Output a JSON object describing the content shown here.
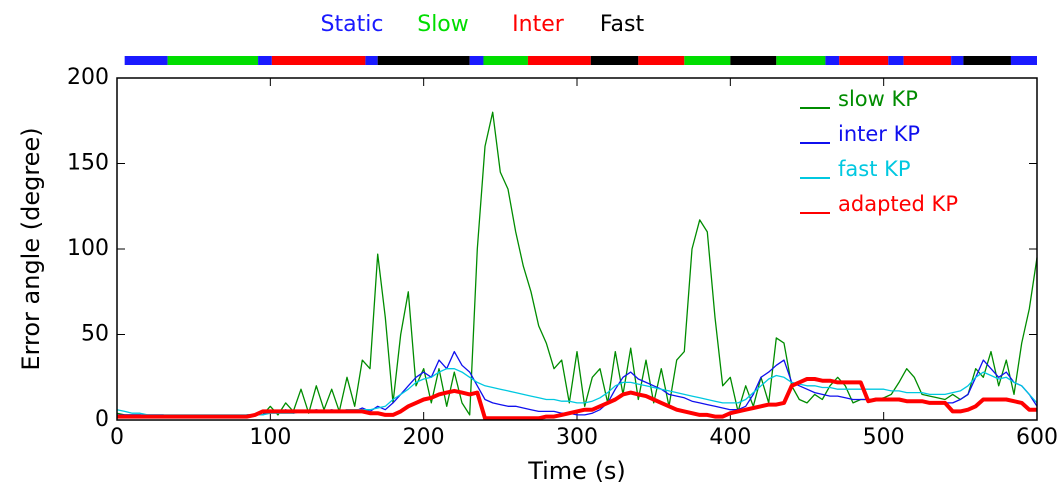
{
  "chart_data": {
    "type": "line",
    "xlabel": "Time (s)",
    "ylabel": "Error angle (degree)",
    "xlim": [
      0,
      600
    ],
    "xticks": [
      0,
      100,
      200,
      300,
      400,
      500,
      600
    ],
    "ylim": [
      0,
      200
    ],
    "yticks": [
      0,
      50,
      100,
      150,
      200
    ],
    "grid": false,
    "legend": "upper right",
    "phases": [
      {
        "name": "Static",
        "color": "#1a1aff"
      },
      {
        "name": "Slow",
        "color": "#00dd00"
      },
      {
        "name": "Inter",
        "color": "#ff0000"
      },
      {
        "name": "Fast",
        "color": "#000000"
      }
    ],
    "phase_edges": [
      5,
      33,
      92,
      101,
      162,
      170,
      230,
      239,
      268,
      309,
      340,
      370,
      400,
      430,
      462,
      471,
      503,
      513,
      544,
      552,
      583,
      600
    ],
    "phase_colors": [
      "#1a1aff",
      "#00dd00",
      "#1a1aff",
      "#ff0000",
      "#1a1aff",
      "#000000",
      "#1a1aff",
      "#00dd00",
      "#ff0000",
      "#000000",
      "#ff0000",
      "#00dd00",
      "#000000",
      "#00dd00",
      "#1a1aff",
      "#ff0000",
      "#1a1aff",
      "#ff0000",
      "#1a1aff",
      "#000000",
      "#1a1aff"
    ],
    "x": [
      0,
      5,
      10,
      15,
      20,
      25,
      30,
      35,
      40,
      45,
      50,
      55,
      60,
      65,
      70,
      75,
      80,
      85,
      90,
      95,
      100,
      105,
      110,
      115,
      120,
      125,
      130,
      135,
      140,
      145,
      150,
      155,
      160,
      165,
      170,
      175,
      180,
      185,
      190,
      195,
      200,
      205,
      210,
      215,
      220,
      225,
      230,
      235,
      240,
      245,
      250,
      255,
      260,
      265,
      270,
      275,
      280,
      285,
      290,
      295,
      300,
      305,
      310,
      315,
      320,
      325,
      330,
      335,
      340,
      345,
      350,
      355,
      360,
      365,
      370,
      375,
      380,
      385,
      390,
      395,
      400,
      405,
      410,
      415,
      420,
      425,
      430,
      435,
      440,
      445,
      450,
      455,
      460,
      465,
      470,
      475,
      480,
      485,
      490,
      495,
      500,
      505,
      510,
      515,
      520,
      525,
      530,
      535,
      540,
      545,
      550,
      555,
      560,
      565,
      570,
      575,
      580,
      585,
      590,
      595,
      600
    ],
    "series": [
      {
        "name": "slow KP",
        "color": "#008c00",
        "width": 1.3,
        "values": [
          4,
          3,
          3,
          3,
          2,
          2,
          2,
          2,
          2,
          2,
          2,
          2,
          2,
          2,
          2,
          2,
          2,
          3,
          3,
          3,
          8,
          3,
          10,
          5,
          18,
          4,
          20,
          6,
          18,
          5,
          25,
          8,
          35,
          30,
          97,
          60,
          10,
          50,
          75,
          20,
          30,
          10,
          30,
          8,
          28,
          10,
          3,
          100,
          160,
          180,
          145,
          135,
          110,
          90,
          75,
          55,
          45,
          30,
          35,
          10,
          40,
          8,
          25,
          30,
          10,
          40,
          15,
          42,
          12,
          35,
          10,
          30,
          8,
          35,
          40,
          100,
          117,
          110,
          60,
          20,
          25,
          5,
          20,
          8,
          25,
          10,
          48,
          45,
          20,
          12,
          10,
          15,
          12,
          20,
          25,
          20,
          10,
          12,
          12,
          12,
          13,
          15,
          22,
          30,
          25,
          15,
          14,
          13,
          12,
          15,
          12,
          15,
          30,
          25,
          40,
          20,
          35,
          15,
          45,
          65,
          95
        ]
      },
      {
        "name": "inter KP",
        "color": "#1010ee",
        "width": 1.3,
        "values": [
          3,
          3,
          3,
          3,
          3,
          3,
          3,
          2,
          2,
          2,
          2,
          2,
          2,
          2,
          2,
          2,
          2,
          3,
          3,
          3,
          5,
          4,
          6,
          4,
          5,
          5,
          6,
          5,
          6,
          5,
          6,
          5,
          7,
          5,
          8,
          6,
          10,
          15,
          20,
          25,
          28,
          25,
          35,
          30,
          40,
          32,
          28,
          20,
          12,
          10,
          9,
          8,
          8,
          7,
          6,
          5,
          5,
          5,
          4,
          4,
          3,
          3,
          4,
          6,
          10,
          18,
          25,
          28,
          24,
          22,
          20,
          18,
          15,
          14,
          13,
          11,
          10,
          9,
          8,
          7,
          6,
          6,
          8,
          15,
          25,
          28,
          32,
          35,
          22,
          20,
          18,
          16,
          15,
          14,
          14,
          13,
          12,
          12,
          12,
          12,
          12,
          12,
          12,
          11,
          11,
          11,
          10,
          10,
          10,
          10,
          12,
          15,
          25,
          35,
          30,
          25,
          28,
          22,
          20,
          15,
          8
        ]
      },
      {
        "name": "fast KP",
        "color": "#00c8e0",
        "width": 1.3,
        "values": [
          6,
          5,
          4,
          4,
          3,
          3,
          3,
          3,
          3,
          3,
          3,
          3,
          3,
          3,
          3,
          3,
          3,
          3,
          3,
          3,
          4,
          4,
          4,
          4,
          5,
          5,
          5,
          5,
          5,
          5,
          6,
          6,
          6,
          6,
          7,
          8,
          12,
          15,
          18,
          22,
          24,
          25,
          28,
          30,
          30,
          28,
          25,
          22,
          20,
          19,
          18,
          17,
          16,
          15,
          14,
          13,
          12,
          12,
          11,
          11,
          10,
          10,
          11,
          13,
          16,
          20,
          22,
          22,
          21,
          20,
          19,
          18,
          17,
          16,
          15,
          14,
          13,
          12,
          11,
          10,
          10,
          10,
          12,
          16,
          20,
          24,
          26,
          25,
          22,
          21,
          20,
          20,
          19,
          19,
          18,
          18,
          18,
          18,
          18,
          18,
          18,
          17,
          17,
          16,
          16,
          16,
          15,
          15,
          15,
          16,
          17,
          20,
          25,
          28,
          26,
          24,
          25,
          22,
          20,
          15,
          10
        ]
      },
      {
        "name": "adapted KP",
        "color": "#ff0000",
        "width": 4,
        "values": [
          2,
          2,
          2,
          2,
          2,
          2,
          2,
          2,
          2,
          2,
          2,
          2,
          2,
          2,
          2,
          2,
          2,
          2,
          3,
          5,
          5,
          5,
          5,
          5,
          5,
          5,
          5,
          5,
          5,
          5,
          5,
          5,
          5,
          4,
          4,
          3,
          3,
          5,
          8,
          10,
          12,
          13,
          15,
          16,
          17,
          16,
          15,
          16,
          1,
          1,
          1,
          1,
          1,
          1,
          1,
          1,
          2,
          2,
          3,
          4,
          5,
          6,
          6,
          8,
          10,
          12,
          15,
          16,
          15,
          14,
          12,
          10,
          8,
          6,
          5,
          4,
          3,
          3,
          2,
          2,
          4,
          5,
          6,
          7,
          8,
          9,
          9,
          10,
          20,
          22,
          24,
          24,
          23,
          23,
          22,
          22,
          22,
          22,
          11,
          12,
          12,
          12,
          12,
          11,
          11,
          11,
          10,
          10,
          10,
          5,
          5,
          6,
          8,
          12,
          12,
          12,
          12,
          11,
          10,
          6,
          6
        ]
      }
    ]
  }
}
